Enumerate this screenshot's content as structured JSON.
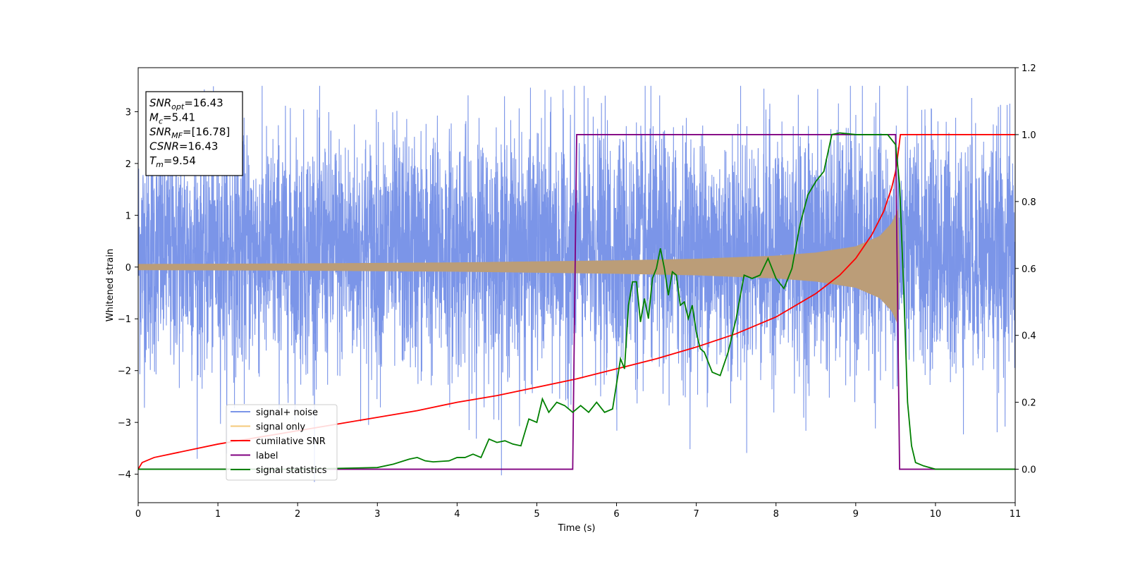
{
  "chart_data": {
    "type": "line",
    "xlabel": "Time (s)",
    "ylabel": "Whitened strain",
    "xlim": [
      0,
      11
    ],
    "ylim_left": [
      -4.55,
      3.85
    ],
    "ylim_right": [
      -0.1,
      1.2
    ],
    "xticks": [
      0,
      1,
      2,
      3,
      4,
      5,
      6,
      7,
      8,
      9,
      10,
      11
    ],
    "yticks_left": [
      -4,
      -3,
      -2,
      -1,
      0,
      1,
      2,
      3
    ],
    "yticks_right": [
      0.0,
      0.2,
      0.4,
      0.6,
      0.8,
      1.0,
      1.2
    ],
    "xtick_labels": [
      "0",
      "1",
      "2",
      "3",
      "4",
      "5",
      "6",
      "7",
      "8",
      "9",
      "10",
      "11"
    ],
    "ytick_labels_left": [
      "−4",
      "−3",
      "−2",
      "−1",
      "0",
      "1",
      "2",
      "3"
    ],
    "ytick_labels_right": [
      "0.0",
      "0.2",
      "0.4",
      "0.6",
      "0.8",
      "1.0",
      "1.2"
    ],
    "legend_position": "lower-left",
    "colors": {
      "signal_noise": "#7b95e8",
      "signal_only": "#f5c97a",
      "signal_only_fill": "#bb9d78",
      "cumulative_snr": "#ff0000",
      "label": "#800080",
      "signal_statistics": "#008000"
    },
    "series": [
      {
        "name": "signal+ noise",
        "axis": "left",
        "description_values": {
          "noise_band": [
            -2.0,
            2.6
          ],
          "noise_peaks": [
            -4.15,
            3.5
          ],
          "t_end": 11.0
        },
        "color_key": "signal_noise"
      },
      {
        "name": "signal only",
        "axis": "left",
        "envelope": {
          "t": [
            0,
            2,
            4,
            5,
            6,
            7,
            8,
            8.5,
            9.0,
            9.3,
            9.45,
            9.54,
            9.55,
            11
          ],
          "amp": [
            0.06,
            0.07,
            0.09,
            0.11,
            0.13,
            0.16,
            0.22,
            0.28,
            0.4,
            0.6,
            0.85,
            1.15,
            0.0,
            0.0
          ]
        },
        "color_key": "signal_only"
      },
      {
        "name": "cumilative SNR",
        "axis": "right",
        "x": [
          0,
          0.05,
          0.2,
          0.5,
          1,
          1.5,
          2,
          2.5,
          3,
          3.5,
          4,
          4.5,
          5,
          5.5,
          6,
          6.5,
          7,
          7.5,
          8,
          8.5,
          8.8,
          9.0,
          9.2,
          9.35,
          9.45,
          9.5,
          9.54,
          9.56,
          11
        ],
        "y": [
          0.0,
          0.02,
          0.035,
          0.05,
          0.075,
          0.095,
          0.115,
          0.135,
          0.155,
          0.175,
          0.2,
          0.22,
          0.245,
          0.27,
          0.3,
          0.33,
          0.365,
          0.405,
          0.455,
          0.525,
          0.58,
          0.63,
          0.7,
          0.77,
          0.84,
          0.89,
          0.96,
          1.0,
          1.0
        ],
        "color_key": "cumulative_snr"
      },
      {
        "name": "label",
        "axis": "right",
        "x": [
          0,
          5.45,
          5.5,
          9.5,
          9.55,
          11
        ],
        "y": [
          0,
          0,
          1,
          1,
          0,
          0
        ],
        "color_key": "label"
      },
      {
        "name": "signal statistics",
        "axis": "right",
        "x": [
          0,
          1,
          2,
          3,
          3.2,
          3.4,
          3.5,
          3.6,
          3.7,
          3.9,
          4.0,
          4.1,
          4.2,
          4.3,
          4.4,
          4.5,
          4.6,
          4.7,
          4.8,
          4.9,
          5.0,
          5.07,
          5.15,
          5.25,
          5.35,
          5.45,
          5.55,
          5.65,
          5.75,
          5.85,
          5.95,
          6.05,
          6.1,
          6.15,
          6.2,
          6.25,
          6.3,
          6.35,
          6.4,
          6.45,
          6.5,
          6.55,
          6.6,
          6.65,
          6.7,
          6.75,
          6.8,
          6.85,
          6.9,
          6.95,
          7.0,
          7.05,
          7.1,
          7.2,
          7.3,
          7.4,
          7.5,
          7.6,
          7.7,
          7.8,
          7.9,
          8.0,
          8.1,
          8.2,
          8.3,
          8.4,
          8.5,
          8.6,
          8.7,
          8.8,
          9.0,
          9.2,
          9.4,
          9.5,
          9.55,
          9.6,
          9.65,
          9.7,
          9.75,
          9.85,
          10.0,
          11.0
        ],
        "y": [
          0.0,
          0.0,
          0.0,
          0.005,
          0.015,
          0.03,
          0.035,
          0.025,
          0.022,
          0.025,
          0.035,
          0.035,
          0.045,
          0.035,
          0.09,
          0.08,
          0.085,
          0.075,
          0.07,
          0.15,
          0.14,
          0.21,
          0.17,
          0.2,
          0.19,
          0.17,
          0.19,
          0.17,
          0.2,
          0.17,
          0.18,
          0.33,
          0.3,
          0.49,
          0.56,
          0.56,
          0.44,
          0.51,
          0.45,
          0.57,
          0.6,
          0.66,
          0.6,
          0.52,
          0.59,
          0.58,
          0.49,
          0.5,
          0.45,
          0.49,
          0.41,
          0.36,
          0.35,
          0.29,
          0.28,
          0.35,
          0.45,
          0.58,
          0.57,
          0.58,
          0.63,
          0.57,
          0.54,
          0.6,
          0.73,
          0.82,
          0.86,
          0.89,
          1.0,
          1.005,
          1.0,
          1.0,
          1.0,
          0.97,
          0.85,
          0.55,
          0.2,
          0.07,
          0.02,
          0.01,
          0.0,
          0.0
        ],
        "color_key": "signal_statistics"
      }
    ],
    "annotation": {
      "lines": [
        {
          "key": "SNR",
          "sub": "opt",
          "value": "=16.43"
        },
        {
          "key": "M",
          "sub": "c",
          "value": "=5.41"
        },
        {
          "key": "SNR",
          "sub": "MF",
          "value": "=[16.78]"
        },
        {
          "key": "CSNR",
          "sub": "",
          "value": "=16.43"
        },
        {
          "key": "T",
          "sub": "m",
          "value": "=9.54"
        }
      ]
    }
  }
}
